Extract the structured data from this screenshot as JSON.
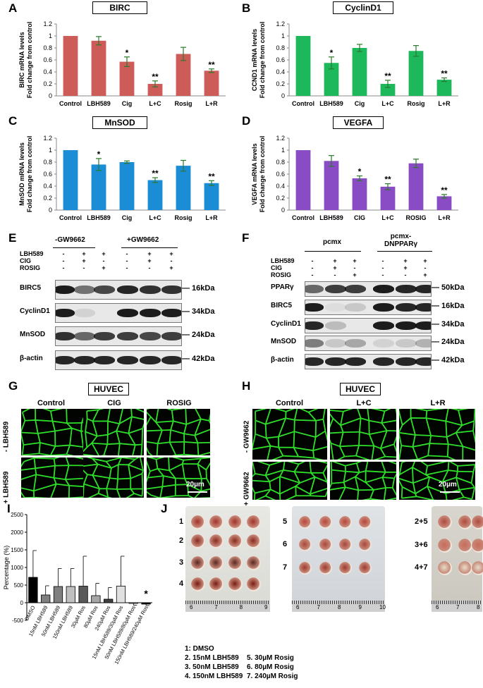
{
  "panel_letters": [
    "A",
    "B",
    "C",
    "D",
    "E",
    "F",
    "G",
    "H",
    "I",
    "J"
  ],
  "chart_data": [
    {
      "type": "bar",
      "panel": "A",
      "title": "BIRC",
      "ylabel": "BIRC mRNA levels\nFold change from control",
      "categories": [
        "Control",
        "LBH589",
        "Cig",
        "L+C",
        "Rosig",
        "L+R"
      ],
      "values": [
        1.0,
        0.92,
        0.57,
        0.2,
        0.7,
        0.42
      ],
      "errors": [
        0,
        0.07,
        0.08,
        0.05,
        0.11,
        0.03
      ],
      "significance": [
        "",
        "",
        "*",
        "**",
        "",
        "**"
      ],
      "yticks": [
        "0",
        "0.2",
        "0.4",
        "0.6",
        "0.8",
        "1",
        "1.2"
      ],
      "ylim": [
        0,
        1.2
      ],
      "color": "#cd5c58"
    },
    {
      "type": "bar",
      "panel": "B",
      "title": "CyclinD1",
      "ylabel": "CCND1 mRNA levels\nFold change from control",
      "categories": [
        "Control",
        "LBH589",
        "Cig",
        "L+C",
        "Rosig",
        "L+R"
      ],
      "values": [
        1.0,
        0.55,
        0.8,
        0.2,
        0.75,
        0.27
      ],
      "errors": [
        0,
        0.1,
        0.06,
        0.06,
        0.09,
        0.03
      ],
      "significance": [
        "",
        "*",
        "",
        "**",
        "",
        "**"
      ],
      "yticks": [
        "0",
        "0.2",
        "0.4",
        "0.6",
        "0.8",
        "1",
        "1.2"
      ],
      "ylim": [
        0,
        1.2
      ],
      "color": "#1db85c"
    },
    {
      "type": "bar",
      "panel": "C",
      "title": "MnSOD",
      "ylabel": "MnSOD mRNA levels\nFold change from control",
      "categories": [
        "Control",
        "LBH589",
        "Cig",
        "L+C",
        "Rosig",
        "L+R"
      ],
      "values": [
        1.0,
        0.76,
        0.8,
        0.5,
        0.74,
        0.45
      ],
      "errors": [
        0,
        0.1,
        0.02,
        0.04,
        0.09,
        0.04
      ],
      "significance": [
        "",
        "*",
        "",
        "**",
        "",
        "**"
      ],
      "yticks": [
        "0",
        "0.2",
        "0.4",
        "0.6",
        "0.8",
        "1",
        "1.2"
      ],
      "ylim": [
        0,
        1.2
      ],
      "color": "#1a8dd6"
    },
    {
      "type": "bar",
      "panel": "D",
      "title": "VEGFA",
      "ylabel": "VEGFA mRNA levels\nFold change from control",
      "categories": [
        "Control",
        "LBH589",
        "CIG",
        "L+C",
        "ROSIG",
        "L+R"
      ],
      "values": [
        1.0,
        0.82,
        0.53,
        0.39,
        0.78,
        0.23
      ],
      "errors": [
        0,
        0.09,
        0.04,
        0.05,
        0.07,
        0.03
      ],
      "significance": [
        "",
        "",
        "*",
        "**",
        "",
        "**"
      ],
      "yticks": [
        "0",
        "0.2",
        "0.4",
        "0.6",
        "0.8",
        "1",
        "1.2"
      ],
      "ylim": [
        0,
        1.2
      ],
      "color": "#8a4cc4"
    },
    {
      "type": "bar",
      "panel": "I",
      "ylabel": "Percentage (%)",
      "categories": [
        "DMSO",
        "15nM LBH589",
        "50nM LBH589",
        "150nM LBH589",
        "30µM Ros",
        "80µM Ros",
        "240µM Ros",
        "15nM LBH589/30µM Ros",
        "50nM LBH589/80µM Ros",
        "150nM LBH589/240µM Ros"
      ],
      "values": [
        720,
        220,
        460,
        460,
        470,
        200,
        100,
        470,
        -10,
        -40
      ],
      "errors": [
        760,
        260,
        510,
        510,
        850,
        350,
        330,
        850,
        60,
        40
      ],
      "significance": [
        "",
        "",
        "",
        "",
        "",
        "",
        "",
        "",
        "",
        "*"
      ],
      "colors": [
        "#000000",
        "#7f7f7f",
        "#7f7f7f",
        "#bfbfbf",
        "#595959",
        "#a6a6a6",
        "#404040",
        "#e0e0e0",
        "#ffffff",
        "#000000"
      ],
      "yticks": [
        "-500",
        "0",
        "500",
        "1000",
        "1500",
        "2000",
        "2500"
      ],
      "ylim": [
        -500,
        2500
      ]
    }
  ],
  "panelE": {
    "groups": [
      "-GW9662",
      "+GW9662"
    ],
    "cond_labels": [
      "LBH589",
      "CIG",
      "ROSIG"
    ],
    "cond_matrix": [
      [
        "-",
        "+",
        "+",
        "-",
        "+",
        "+"
      ],
      [
        "-",
        "+",
        "-",
        "-",
        "+",
        "-"
      ],
      [
        "-",
        "-",
        "+",
        "-",
        "-",
        "+"
      ]
    ],
    "rows": [
      {
        "label": "BIRC5",
        "kda": "16kDa",
        "intensity": [
          0.95,
          0.55,
          0.75,
          0.9,
          0.85,
          0.85
        ]
      },
      {
        "label": "CyclinD1",
        "kda": "34kDa",
        "intensity": [
          0.95,
          0.1,
          0.0,
          0.95,
          0.95,
          0.95
        ]
      },
      {
        "label": "MnSOD",
        "kda": "24kDa",
        "intensity": [
          0.85,
          0.6,
          0.8,
          0.8,
          0.75,
          0.8
        ]
      },
      {
        "label": "β-actin",
        "kda": "42kDa",
        "intensity": [
          0.9,
          0.9,
          0.9,
          0.9,
          0.9,
          0.9
        ]
      }
    ]
  },
  "panelF": {
    "groups": [
      "pcmx",
      "pcmx-\nDNPPARγ"
    ],
    "cond_labels": [
      "LBH589",
      "CIG",
      "ROSIG"
    ],
    "cond_matrix": [
      [
        "-",
        "+",
        "+",
        "-",
        "+",
        "+"
      ],
      [
        "-",
        "+",
        "-",
        "-",
        "+",
        "-"
      ],
      [
        "-",
        "-",
        "+",
        "-",
        "-",
        "+"
      ]
    ],
    "rows": [
      {
        "label": "PPARγ",
        "kda": "50kDa",
        "intensity": [
          0.6,
          0.8,
          0.8,
          0.95,
          0.9,
          0.9
        ]
      },
      {
        "label": "BIRC5",
        "kda": "16kDa",
        "intensity": [
          0.95,
          0.05,
          0.15,
          0.95,
          0.9,
          0.9
        ]
      },
      {
        "label": "CyclinD1",
        "kda": "34kDa",
        "intensity": [
          0.9,
          0.2,
          0.0,
          0.95,
          0.95,
          0.95
        ]
      },
      {
        "label": "MnSOD",
        "kda": "24kDa",
        "intensity": [
          0.5,
          0.15,
          0.3,
          0.1,
          0.15,
          0.25
        ]
      },
      {
        "label": "β-actin",
        "kda": "42kDa",
        "intensity": [
          0.9,
          0.9,
          0.9,
          0.9,
          0.9,
          0.9
        ]
      }
    ]
  },
  "panelG": {
    "title": "HUVEC",
    "columns": [
      "Control",
      "CIG",
      "ROSIG"
    ],
    "rows": [
      "- LBH589",
      "+ LBH589"
    ],
    "scale": "20µm"
  },
  "panelH": {
    "title": "HUVEC",
    "columns": [
      "Control",
      "L+C",
      "L+R"
    ],
    "rows": [
      "- GW9662",
      "+ GW9662"
    ],
    "scale": "20µm"
  },
  "panelJ": {
    "left_rows": [
      "1",
      "2",
      "3",
      "4"
    ],
    "middle_rows": [
      "5",
      "6",
      "7"
    ],
    "right_rows": [
      "2+5",
      "3+6",
      "4+7"
    ],
    "ruler_left": [
      "6",
      "7",
      "8",
      "9"
    ],
    "ruler_mid": [
      "6",
      "7",
      "8",
      "9",
      "10"
    ],
    "ruler_right": [
      "6",
      "7",
      "8"
    ],
    "legend_left": [
      "1: DMSO",
      "2. 15nM LBH589",
      "3. 50nM LBH589",
      "4. 150nM LBH589"
    ],
    "legend_right": [
      "5. 30µM Rosig",
      "6. 80µM Rosig",
      "7. 240µM Rosig"
    ]
  }
}
